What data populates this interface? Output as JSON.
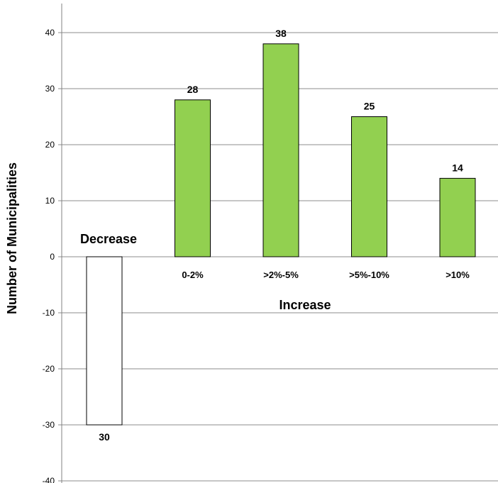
{
  "chart_data": {
    "type": "bar",
    "ylabel": "Number of Municipalities",
    "ylim": [
      -40,
      40
    ],
    "yticks": [
      -40,
      -30,
      -20,
      -10,
      0,
      10,
      20,
      30,
      40
    ],
    "grid": true,
    "group_labels": {
      "decrease": "Decrease",
      "increase": "Increase"
    },
    "bars": [
      {
        "category": "Decrease",
        "show_category_below": false,
        "value": -30,
        "label": "30",
        "color": "#ffffff"
      },
      {
        "category": "0-2%",
        "show_category_below": true,
        "value": 28,
        "label": "28",
        "color": "#92d050"
      },
      {
        "category": ">2%-5%",
        "show_category_below": true,
        "value": 38,
        "label": "38",
        "color": "#92d050"
      },
      {
        "category": ">5%-10%",
        "show_category_below": true,
        "value": 25,
        "label": "25",
        "color": "#92d050"
      },
      {
        "category": ">10%",
        "show_category_below": true,
        "value": 14,
        "label": "14",
        "color": "#92d050"
      }
    ]
  }
}
